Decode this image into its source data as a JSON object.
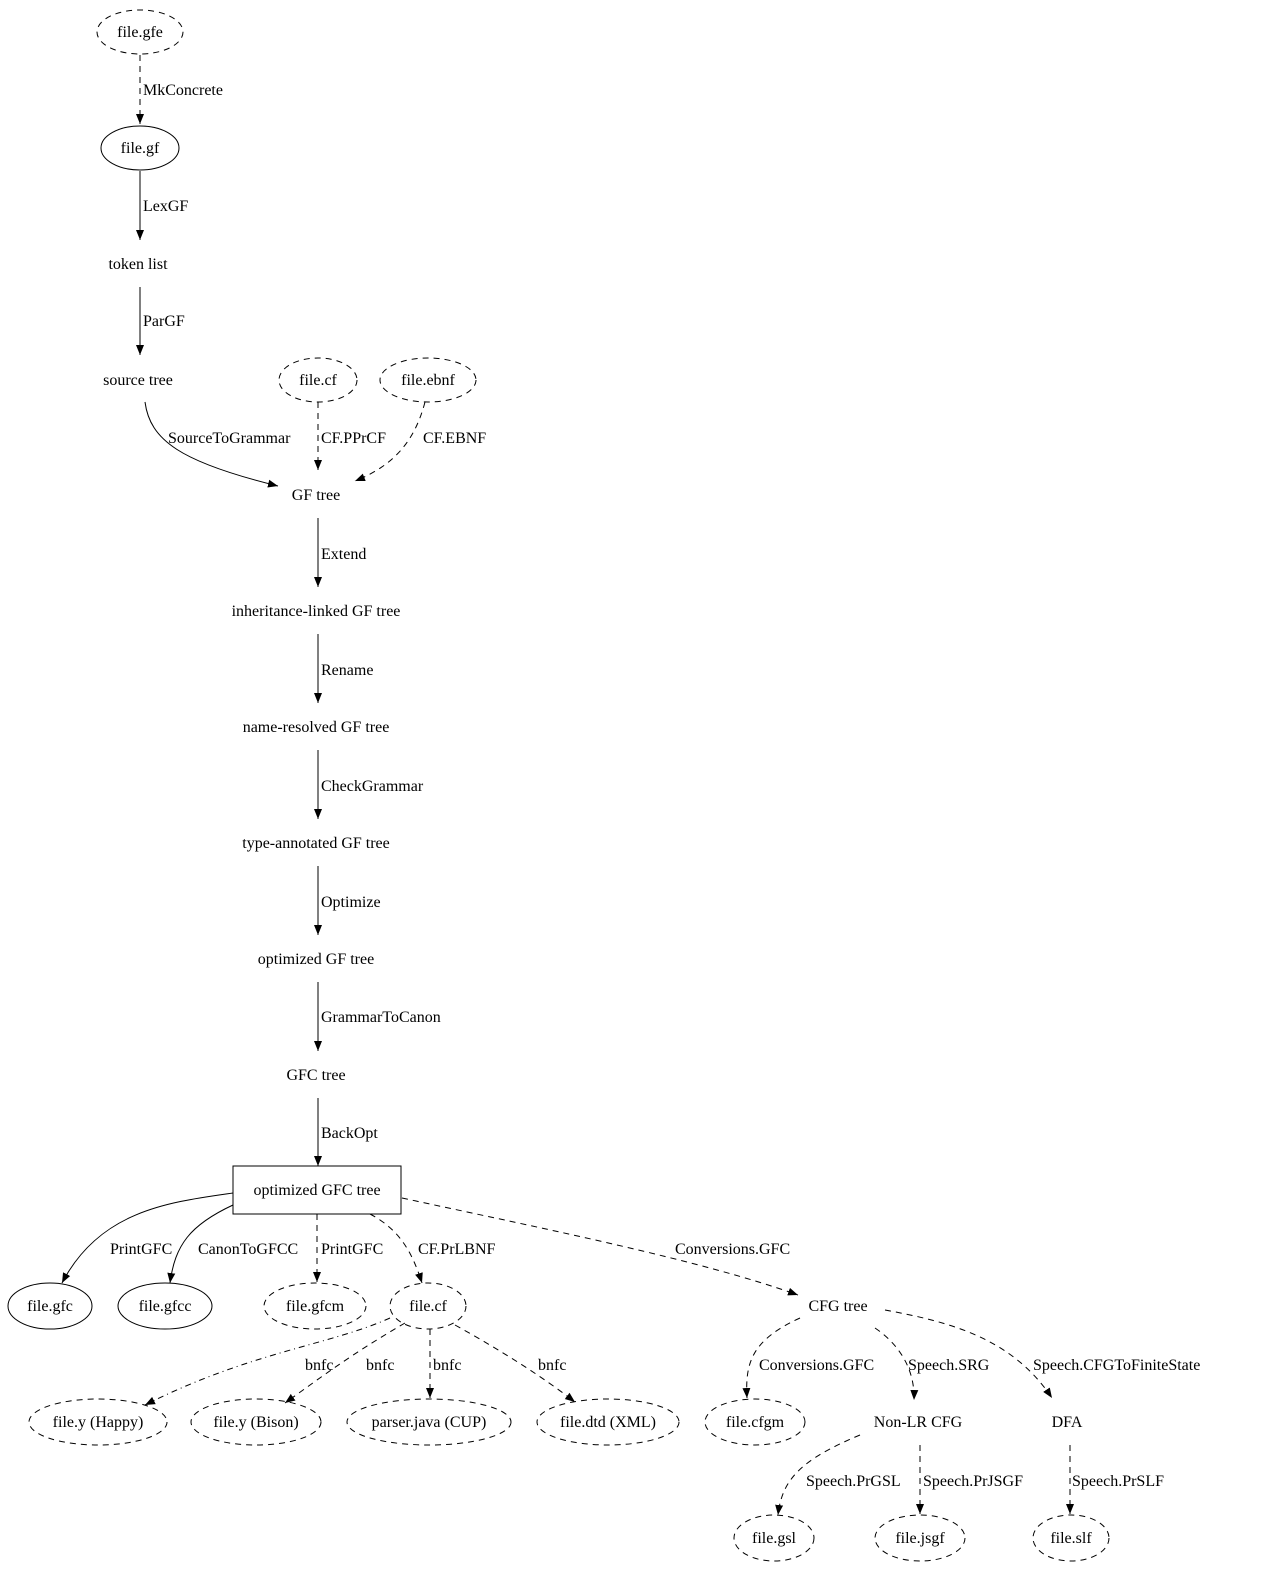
{
  "diagram": {
    "nodes": [
      {
        "id": "gfe",
        "label": "file.gfe",
        "shape": "ellipse",
        "style": "dashed"
      },
      {
        "id": "gf",
        "label": "file.gf",
        "shape": "ellipse",
        "style": "solid"
      },
      {
        "id": "tokens",
        "label": "token list",
        "shape": "plaintext",
        "style": "none"
      },
      {
        "id": "source",
        "label": "source tree",
        "shape": "plaintext",
        "style": "none"
      },
      {
        "id": "cf1",
        "label": "file.cf",
        "shape": "ellipse",
        "style": "dashed"
      },
      {
        "id": "ebnf",
        "label": "file.ebnf",
        "shape": "ellipse",
        "style": "dashed"
      },
      {
        "id": "gftree",
        "label": "GF tree",
        "shape": "plaintext",
        "style": "none"
      },
      {
        "id": "inh",
        "label": "inheritance-linked GF tree",
        "shape": "plaintext",
        "style": "none"
      },
      {
        "id": "nameres",
        "label": "name-resolved GF tree",
        "shape": "plaintext",
        "style": "none"
      },
      {
        "id": "typeann",
        "label": "type-annotated GF tree",
        "shape": "plaintext",
        "style": "none"
      },
      {
        "id": "opt",
        "label": "optimized GF tree",
        "shape": "plaintext",
        "style": "none"
      },
      {
        "id": "gfctree",
        "label": "GFC tree",
        "shape": "plaintext",
        "style": "none"
      },
      {
        "id": "optgfc",
        "label": "optimized GFC tree",
        "shape": "box",
        "style": "solid"
      },
      {
        "id": "gfc",
        "label": "file.gfc",
        "shape": "ellipse",
        "style": "solid"
      },
      {
        "id": "gfcc",
        "label": "file.gfcc",
        "shape": "ellipse",
        "style": "solid"
      },
      {
        "id": "gfcm",
        "label": "file.gfcm",
        "shape": "ellipse",
        "style": "dashed"
      },
      {
        "id": "cf2",
        "label": "file.cf",
        "shape": "ellipse",
        "style": "dashed"
      },
      {
        "id": "cfgtree",
        "label": "CFG tree",
        "shape": "plaintext",
        "style": "none"
      },
      {
        "id": "happy",
        "label": "file.y (Happy)",
        "shape": "ellipse",
        "style": "dashed"
      },
      {
        "id": "bison",
        "label": "file.y (Bison)",
        "shape": "ellipse",
        "style": "dashed"
      },
      {
        "id": "cup",
        "label": "parser.java (CUP)",
        "shape": "ellipse",
        "style": "dashed"
      },
      {
        "id": "dtd",
        "label": "file.dtd (XML)",
        "shape": "ellipse",
        "style": "dashed"
      },
      {
        "id": "cfgm",
        "label": "file.cfgm",
        "shape": "ellipse",
        "style": "dashed"
      },
      {
        "id": "nonlr",
        "label": "Non-LR CFG",
        "shape": "plaintext",
        "style": "none"
      },
      {
        "id": "dfa",
        "label": "DFA",
        "shape": "plaintext",
        "style": "none"
      },
      {
        "id": "gsl",
        "label": "file.gsl",
        "shape": "ellipse",
        "style": "dashed"
      },
      {
        "id": "jsgf",
        "label": "file.jsgf",
        "shape": "ellipse",
        "style": "dashed"
      },
      {
        "id": "slf",
        "label": "file.slf",
        "shape": "ellipse",
        "style": "dashed"
      }
    ],
    "edges": [
      {
        "from": "gfe",
        "to": "gf",
        "label": "MkConcrete",
        "style": "dashed"
      },
      {
        "from": "gf",
        "to": "tokens",
        "label": "LexGF",
        "style": "solid"
      },
      {
        "from": "tokens",
        "to": "source",
        "label": "ParGF",
        "style": "solid"
      },
      {
        "from": "source",
        "to": "gftree",
        "label": "SourceToGrammar",
        "style": "solid"
      },
      {
        "from": "cf1",
        "to": "gftree",
        "label": "CF.PPrCF",
        "style": "dashed"
      },
      {
        "from": "ebnf",
        "to": "gftree",
        "label": "CF.EBNF",
        "style": "dashed"
      },
      {
        "from": "gftree",
        "to": "inh",
        "label": "Extend",
        "style": "solid"
      },
      {
        "from": "inh",
        "to": "nameres",
        "label": "Rename",
        "style": "solid"
      },
      {
        "from": "nameres",
        "to": "typeann",
        "label": "CheckGrammar",
        "style": "solid"
      },
      {
        "from": "typeann",
        "to": "opt",
        "label": "Optimize",
        "style": "solid"
      },
      {
        "from": "opt",
        "to": "gfctree",
        "label": "GrammarToCanon",
        "style": "solid"
      },
      {
        "from": "gfctree",
        "to": "optgfc",
        "label": "BackOpt",
        "style": "solid"
      },
      {
        "from": "optgfc",
        "to": "gfc",
        "label": "PrintGFC",
        "style": "solid"
      },
      {
        "from": "optgfc",
        "to": "gfcc",
        "label": "CanonToGFCC",
        "style": "solid"
      },
      {
        "from": "optgfc",
        "to": "gfcm",
        "label": "PrintGFC",
        "style": "dashed"
      },
      {
        "from": "optgfc",
        "to": "cf2",
        "label": "CF.PrLBNF",
        "style": "dashed"
      },
      {
        "from": "optgfc",
        "to": "cfgtree",
        "label": "Conversions.GFC",
        "style": "dashed"
      },
      {
        "from": "cf2",
        "to": "happy",
        "label": "bnfc",
        "style": "dashdot"
      },
      {
        "from": "cf2",
        "to": "bison",
        "label": "bnfc",
        "style": "dashed"
      },
      {
        "from": "cf2",
        "to": "cup",
        "label": "bnfc",
        "style": "dashed"
      },
      {
        "from": "cf2",
        "to": "dtd",
        "label": "bnfc",
        "style": "dashed"
      },
      {
        "from": "cfgtree",
        "to": "cfgm",
        "label": "Conversions.GFC",
        "style": "dashed"
      },
      {
        "from": "cfgtree",
        "to": "nonlr",
        "label": "Speech.SRG",
        "style": "dashed"
      },
      {
        "from": "cfgtree",
        "to": "dfa",
        "label": "Speech.CFGToFiniteState",
        "style": "dashed"
      },
      {
        "from": "nonlr",
        "to": "gsl",
        "label": "Speech.PrGSL",
        "style": "dashed"
      },
      {
        "from": "nonlr",
        "to": "jsgf",
        "label": "Speech.PrJSGF",
        "style": "dashed"
      },
      {
        "from": "dfa",
        "to": "slf",
        "label": "Speech.PrSLF",
        "style": "dashed"
      }
    ]
  }
}
